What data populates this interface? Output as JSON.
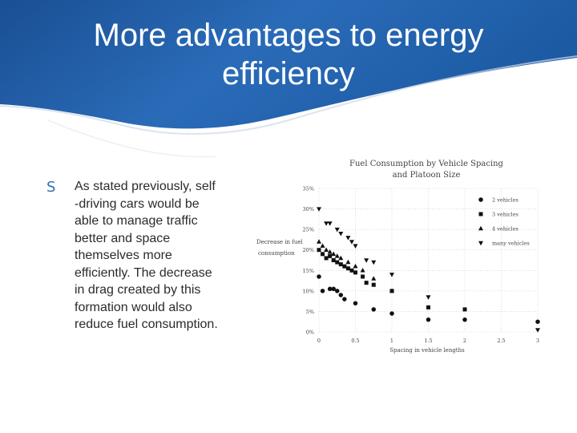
{
  "slide": {
    "title": "More advantages to energy efficiency",
    "bullet": {
      "icon": "s-bullet-icon",
      "lines": [
        "As stated previously, self",
        "-driving cars would be",
        "able to manage traffic",
        "better and space",
        "themselves more",
        "efficiently. The decrease",
        "in drag created by this",
        "formation would also",
        "reduce fuel consumption."
      ]
    },
    "colors": {
      "header_blue": "#1f5ea6",
      "header_dark": "#16467f",
      "bullet_blue": "#2f6fb2"
    }
  },
  "chart_data": {
    "type": "scatter",
    "title": "Fuel Consumption by Vehicle Spacing and Platoon Size",
    "title_lines": [
      "Fuel Consumption by Vehicle Spacing",
      "and Platoon Size"
    ],
    "ylabel": "Decrease in fuel consumption",
    "ylabel_lines": [
      "Decrease in fuel",
      "consumption"
    ],
    "xlabel": "Spacing in vehicle lengths",
    "xlim": [
      0,
      3
    ],
    "ylim": [
      0,
      35
    ],
    "xticks": [
      "0",
      "0.5",
      "1",
      "1.5",
      "2",
      "2.5",
      "3"
    ],
    "yticks": [
      "0%",
      "5%",
      "10%",
      "15%",
      "20%",
      "25%",
      "30%",
      "35%"
    ],
    "legend_position": "top-right",
    "grid": true,
    "series": [
      {
        "name": "2 vehicles",
        "marker": "circle",
        "points": [
          [
            0,
            13.5
          ],
          [
            0.05,
            10
          ],
          [
            0.15,
            10.5
          ],
          [
            0.2,
            10.5
          ],
          [
            0.25,
            10
          ],
          [
            0.3,
            9
          ],
          [
            0.35,
            8
          ],
          [
            0.5,
            7
          ],
          [
            0.75,
            5.5
          ],
          [
            1,
            4.5
          ],
          [
            1.5,
            3
          ],
          [
            2,
            3
          ],
          [
            3,
            2.5
          ]
        ]
      },
      {
        "name": "3 vehicles",
        "marker": "square",
        "points": [
          [
            0,
            20
          ],
          [
            0.05,
            19
          ],
          [
            0.1,
            18
          ],
          [
            0.15,
            18.5
          ],
          [
            0.2,
            17.5
          ],
          [
            0.25,
            17
          ],
          [
            0.3,
            16.5
          ],
          [
            0.35,
            16
          ],
          [
            0.4,
            15.5
          ],
          [
            0.45,
            15
          ],
          [
            0.5,
            14.5
          ],
          [
            0.6,
            13.5
          ],
          [
            0.65,
            12
          ],
          [
            0.75,
            11.5
          ],
          [
            1,
            10
          ],
          [
            1.5,
            6
          ],
          [
            2,
            5.5
          ]
        ]
      },
      {
        "name": "4 vehicles",
        "marker": "triangle",
        "points": [
          [
            0,
            22
          ],
          [
            0.05,
            21
          ],
          [
            0.1,
            20
          ],
          [
            0.15,
            19.5
          ],
          [
            0.2,
            19
          ],
          [
            0.25,
            18.5
          ],
          [
            0.3,
            18
          ],
          [
            0.4,
            17
          ],
          [
            0.5,
            16
          ],
          [
            0.6,
            15
          ],
          [
            0.75,
            13
          ],
          [
            1,
            10
          ]
        ]
      },
      {
        "name": "many vehicles",
        "marker": "triangle-down",
        "points": [
          [
            0,
            30
          ],
          [
            0.1,
            26.5
          ],
          [
            0.15,
            26.5
          ],
          [
            0.25,
            25
          ],
          [
            0.3,
            24
          ],
          [
            0.4,
            23
          ],
          [
            0.45,
            22
          ],
          [
            0.5,
            21
          ],
          [
            0.65,
            17.5
          ],
          [
            0.75,
            17
          ],
          [
            1,
            14
          ],
          [
            1.5,
            8.5
          ],
          [
            3,
            0.5
          ]
        ]
      }
    ]
  }
}
